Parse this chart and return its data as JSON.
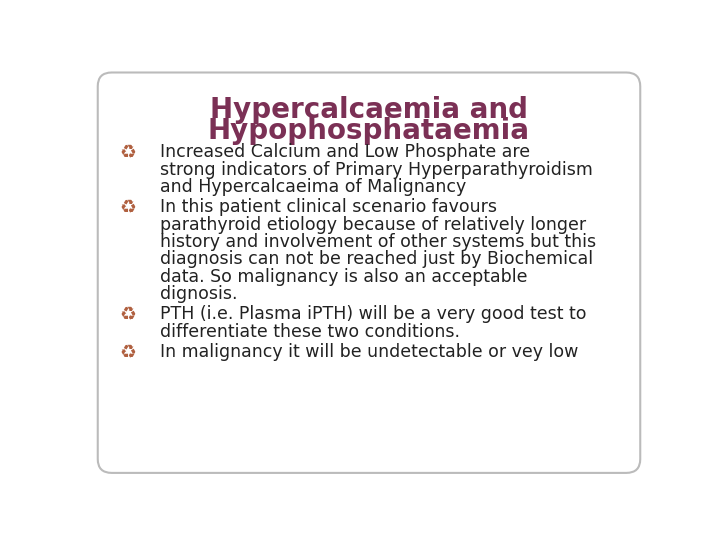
{
  "title_line1": "Hypercalcaemia and",
  "title_line2": "Hypophosphataemia",
  "title_color": "#7B3055",
  "title_fontsize": 20,
  "body_color": "#222222",
  "body_fontsize": 12.5,
  "bullet_color": "#B06040",
  "background_color": "#FFFFFF",
  "border_color": "#BBBBBB",
  "bullets": [
    {
      "lines": [
        "Increased Calcium and Low Phosphate are",
        "strong indicators of Primary Hyperparathyroidism",
        "and Hypercalcaeima of Malignancy"
      ]
    },
    {
      "lines": [
        "In this patient clinical scenario favours",
        "parathyroid etiology because of relatively longer",
        "history and involvement of other systems but this",
        "diagnosis can not be reached just by Biochemical",
        "data. So malignancy is also an acceptable",
        "dignosis."
      ]
    },
    {
      "lines": [
        "PTH (i.e. Plasma iPTH) will be a very good test to",
        "differentiate these two conditions."
      ]
    },
    {
      "lines": [
        "In malignancy it will be undetectable or vey low"
      ]
    }
  ]
}
